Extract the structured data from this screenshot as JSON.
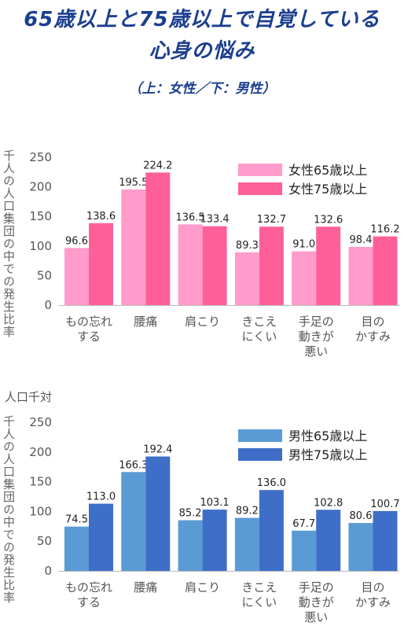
{
  "header": {
    "title_line1": "65歳以上と75歳以上で自覚している",
    "title_line2": "心身の悩み",
    "subtitle": "（上：女性／下：男性）"
  },
  "unit_label": "人口千対",
  "chart_data": [
    {
      "type": "bar",
      "ylabel": "千人の人口集団の中での発生比率",
      "ylim": [
        0,
        250
      ],
      "yticks": [
        0,
        50,
        100,
        150,
        200,
        250
      ],
      "grid": false,
      "legend_position": "top-right",
      "categories": [
        [
          "もの忘れ",
          "する"
        ],
        [
          "腰痛"
        ],
        [
          "肩こり"
        ],
        [
          "きこえ",
          "にくい"
        ],
        [
          "手足の",
          "動きが",
          "悪い"
        ],
        [
          "目の",
          "かすみ"
        ]
      ],
      "series": [
        {
          "name": "女性65歳以上",
          "color": "#ff9ccc",
          "values": [
            96.6,
            195.5,
            136.5,
            89.3,
            91.0,
            98.4
          ],
          "labels": [
            "96.6",
            "195.5",
            "136.5",
            "89.3",
            "91.0",
            "98.4"
          ]
        },
        {
          "name": "女性75歳以上",
          "color": "#ff5f98",
          "values": [
            138.6,
            224.2,
            133.4,
            132.7,
            132.6,
            116.2
          ],
          "labels": [
            "138.6",
            "224.2",
            "133.4",
            "132.7",
            "132.6",
            "116.2"
          ]
        }
      ]
    },
    {
      "type": "bar",
      "ylabel": "千人の人口集団の中での発生比率",
      "ylim": [
        0,
        250
      ],
      "yticks": [
        0,
        50,
        100,
        150,
        200,
        250
      ],
      "grid": false,
      "legend_position": "top-right",
      "categories": [
        [
          "もの忘れ",
          "する"
        ],
        [
          "腰痛"
        ],
        [
          "肩こり"
        ],
        [
          "きこえ",
          "にくい"
        ],
        [
          "手足の",
          "動きが",
          "悪い"
        ],
        [
          "目の",
          "かすみ"
        ]
      ],
      "series": [
        {
          "name": "男性65歳以上",
          "color": "#5b9bd5",
          "values": [
            74.5,
            166.3,
            85.2,
            89.2,
            67.7,
            80.6
          ],
          "labels": [
            "74.5",
            "166.3",
            "85.2",
            "89.2",
            "67.7",
            "80.6"
          ]
        },
        {
          "name": "男性75歳以上",
          "color": "#3e6ec8",
          "values": [
            113.0,
            192.4,
            103.1,
            136.0,
            102.8,
            100.7
          ],
          "labels": [
            "113.0",
            "192.4",
            "103.1",
            "136.0",
            "102.8",
            "100.7"
          ]
        }
      ]
    }
  ]
}
